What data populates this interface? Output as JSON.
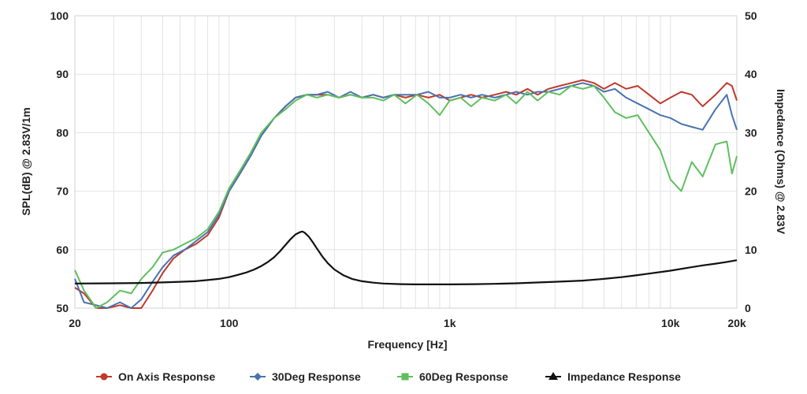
{
  "chart_data": {
    "type": "line",
    "x_scale": "log",
    "xlabel": "Frequency [Hz]",
    "ylabel_left": "SPL(dB) @ 2.83V/1m",
    "ylabel_right": "Impedance (Ohms) @ 2.83V",
    "xlim": [
      20,
      20000
    ],
    "ylim_left": [
      50,
      100
    ],
    "ylim_right": [
      0,
      50
    ],
    "x_ticks": [
      {
        "value": 20,
        "label": "20"
      },
      {
        "value": 100,
        "label": "100"
      },
      {
        "value": 1000,
        "label": "1k"
      },
      {
        "value": 10000,
        "label": "10k"
      },
      {
        "value": 20000,
        "label": "20k"
      }
    ],
    "y_ticks_left": [
      "50",
      "60",
      "70",
      "80",
      "90",
      "100"
    ],
    "y_ticks_right": [
      "0",
      "10",
      "20",
      "30",
      "40",
      "50"
    ],
    "grid": true,
    "legend_position": "bottom",
    "series": [
      {
        "name": "On Axis Response",
        "axis": "left",
        "color": "#c0392b",
        "marker": "circle",
        "x": [
          20,
          22,
          25,
          28,
          32,
          36,
          40,
          45,
          50,
          56,
          63,
          71,
          80,
          90,
          100,
          112,
          125,
          140,
          160,
          180,
          200,
          225,
          250,
          280,
          315,
          355,
          400,
          450,
          500,
          560,
          630,
          710,
          800,
          900,
          1000,
          1120,
          1250,
          1400,
          1600,
          1800,
          2000,
          2250,
          2500,
          2800,
          3150,
          3550,
          4000,
          4500,
          5000,
          5600,
          6300,
          7100,
          8000,
          9000,
          10000,
          11200,
          12500,
          14000,
          16000,
          18000,
          19000,
          20000
        ],
        "y": [
          53.5,
          52.5,
          49.5,
          50.0,
          50.5,
          49.5,
          50.0,
          53.0,
          56.0,
          58.5,
          60.0,
          61.0,
          62.5,
          65.5,
          70.0,
          73.0,
          76.0,
          79.5,
          82.5,
          84.5,
          86.0,
          86.5,
          86.5,
          86.5,
          86.0,
          86.5,
          86.0,
          86.5,
          86.0,
          86.5,
          86.0,
          86.5,
          86.0,
          86.5,
          85.5,
          86.0,
          86.5,
          86.0,
          86.5,
          87.0,
          86.5,
          87.5,
          86.5,
          87.5,
          88.0,
          88.5,
          89.0,
          88.5,
          87.5,
          88.5,
          87.5,
          88.0,
          86.5,
          85.0,
          86.0,
          87.0,
          86.5,
          84.5,
          86.5,
          88.5,
          88.0,
          85.5
        ]
      },
      {
        "name": "30Deg Response",
        "axis": "left",
        "color": "#4a72b0",
        "marker": "diamond",
        "x": [
          20,
          22,
          25,
          28,
          32,
          36,
          40,
          45,
          50,
          56,
          63,
          71,
          80,
          90,
          100,
          112,
          125,
          140,
          160,
          180,
          200,
          225,
          250,
          280,
          315,
          355,
          400,
          450,
          500,
          560,
          630,
          710,
          800,
          900,
          1000,
          1120,
          1250,
          1400,
          1600,
          1800,
          2000,
          2250,
          2500,
          2800,
          3150,
          3550,
          4000,
          4500,
          5000,
          5600,
          6300,
          7100,
          8000,
          9000,
          10000,
          11200,
          12500,
          14000,
          16000,
          18000,
          19000,
          20000
        ],
        "y": [
          55.0,
          51.0,
          50.5,
          50.0,
          51.0,
          50.0,
          51.5,
          54.5,
          57.0,
          59.0,
          60.0,
          61.5,
          63.0,
          66.0,
          70.0,
          73.0,
          76.0,
          79.5,
          82.5,
          84.5,
          86.0,
          86.5,
          86.5,
          87.0,
          86.0,
          87.0,
          86.0,
          86.5,
          86.0,
          86.5,
          86.5,
          86.5,
          87.0,
          86.0,
          86.0,
          86.5,
          86.0,
          86.5,
          86.0,
          86.5,
          87.0,
          86.5,
          87.0,
          87.0,
          87.5,
          88.0,
          88.5,
          88.0,
          87.0,
          87.5,
          86.0,
          85.0,
          84.0,
          83.0,
          82.5,
          81.5,
          81.0,
          80.5,
          84.0,
          86.5,
          83.0,
          80.5
        ]
      },
      {
        "name": "60Deg Response",
        "axis": "left",
        "color": "#5fbf5f",
        "marker": "square",
        "x": [
          20,
          22,
          25,
          28,
          32,
          36,
          40,
          45,
          50,
          56,
          63,
          71,
          80,
          90,
          100,
          112,
          125,
          140,
          160,
          180,
          200,
          225,
          250,
          280,
          315,
          355,
          400,
          450,
          500,
          560,
          630,
          710,
          800,
          900,
          1000,
          1120,
          1250,
          1400,
          1600,
          1800,
          2000,
          2250,
          2500,
          2800,
          3150,
          3550,
          4000,
          4500,
          5000,
          5600,
          6300,
          7100,
          8000,
          9000,
          10000,
          11200,
          12500,
          14000,
          16000,
          18000,
          19000,
          20000
        ],
        "y": [
          56.5,
          53.0,
          50.0,
          51.0,
          53.0,
          52.5,
          55.0,
          57.0,
          59.5,
          60.0,
          61.0,
          62.0,
          63.5,
          66.5,
          70.5,
          73.5,
          76.5,
          80.0,
          82.5,
          84.0,
          85.5,
          86.5,
          86.0,
          86.5,
          86.0,
          86.5,
          86.0,
          86.0,
          85.5,
          86.5,
          85.0,
          86.5,
          85.0,
          83.0,
          85.5,
          86.0,
          84.5,
          86.0,
          85.5,
          86.5,
          85.0,
          87.0,
          85.5,
          87.0,
          86.5,
          88.0,
          87.5,
          88.0,
          86.0,
          83.5,
          82.5,
          83.0,
          80.0,
          77.0,
          72.0,
          70.0,
          75.0,
          72.5,
          78.0,
          78.5,
          73.0,
          76.0
        ]
      },
      {
        "name": "Impedance Response",
        "axis": "right",
        "color": "#111111",
        "marker": "triangle",
        "x": [
          20,
          30,
          40,
          50,
          60,
          70,
          80,
          90,
          100,
          110,
          120,
          130,
          140,
          150,
          160,
          170,
          180,
          190,
          200,
          210,
          215,
          220,
          230,
          240,
          250,
          265,
          280,
          300,
          330,
          360,
          400,
          450,
          500,
          600,
          700,
          800,
          1000,
          1300,
          1600,
          2000,
          3000,
          4000,
          5000,
          6000,
          7000,
          8000,
          10000,
          12000,
          14000,
          16000,
          18000,
          20000
        ],
        "y": [
          4.2,
          4.25,
          4.3,
          4.4,
          4.5,
          4.6,
          4.8,
          5.0,
          5.3,
          5.7,
          6.1,
          6.6,
          7.2,
          7.9,
          8.7,
          9.7,
          10.8,
          11.8,
          12.6,
          13.0,
          13.1,
          12.9,
          12.2,
          11.2,
          10.2,
          8.8,
          7.7,
          6.6,
          5.6,
          5.0,
          4.6,
          4.35,
          4.2,
          4.1,
          4.05,
          4.05,
          4.05,
          4.1,
          4.15,
          4.25,
          4.5,
          4.7,
          5.0,
          5.3,
          5.6,
          5.9,
          6.4,
          6.9,
          7.3,
          7.6,
          7.9,
          8.2
        ]
      }
    ]
  }
}
